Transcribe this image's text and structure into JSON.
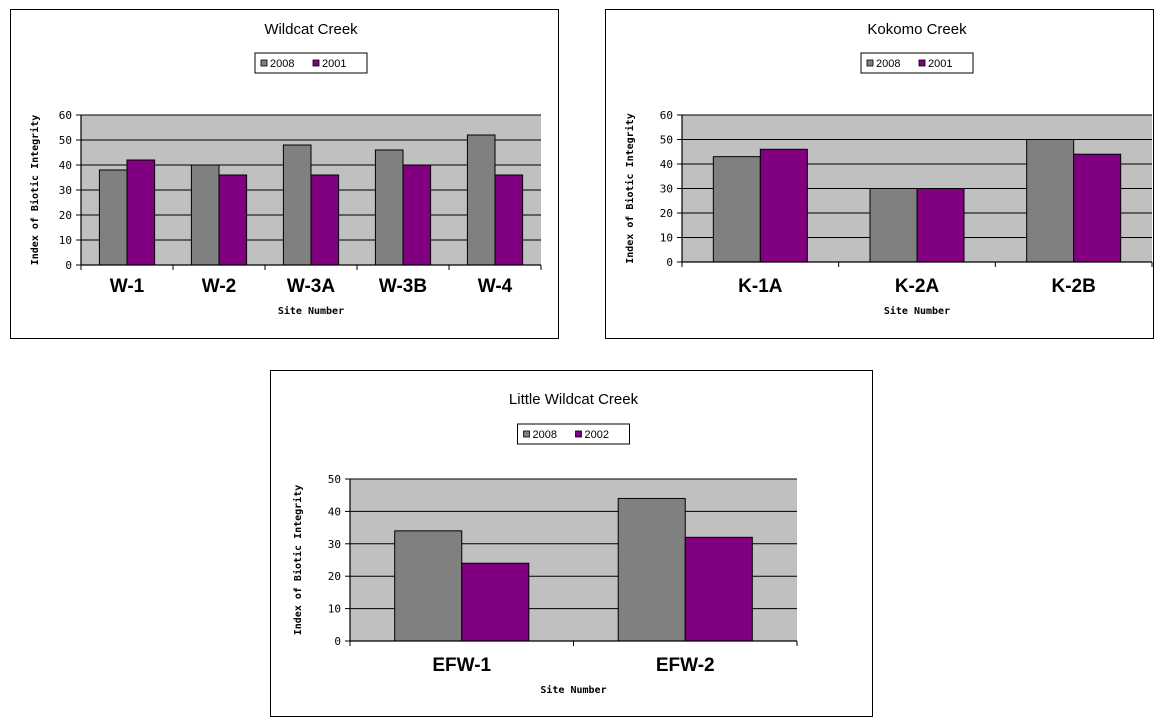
{
  "chart_data": [
    {
      "type": "bar",
      "title": "Wildcat Creek",
      "xlabel": "Site Number",
      "ylabel": "Index of Biotic Integrity",
      "ylim": [
        0,
        60
      ],
      "yticks": [
        0,
        10,
        20,
        30,
        40,
        50,
        60
      ],
      "categories": [
        "W-1",
        "W-2",
        "W-3A",
        "W-3B",
        "W-4"
      ],
      "series": [
        {
          "name": "2008",
          "color": "#808080",
          "values": [
            38,
            40,
            48,
            46,
            52
          ]
        },
        {
          "name": "2001",
          "color": "#800080",
          "values": [
            42,
            36,
            36,
            40,
            36
          ]
        }
      ],
      "grid": true,
      "legend": "top-center"
    },
    {
      "type": "bar",
      "title": "Kokomo Creek",
      "xlabel": "Site Number",
      "ylabel": "Index of Biotic Integrity",
      "ylim": [
        0,
        60
      ],
      "yticks": [
        0,
        10,
        20,
        30,
        40,
        50,
        60
      ],
      "categories": [
        "K-1A",
        "K-2A",
        "K-2B"
      ],
      "series": [
        {
          "name": "2008",
          "color": "#808080",
          "values": [
            43,
            30,
            50
          ]
        },
        {
          "name": "2001",
          "color": "#800080",
          "values": [
            46,
            30,
            44
          ]
        }
      ],
      "grid": true,
      "legend": "top-center"
    },
    {
      "type": "bar",
      "title": "Little Wildcat Creek",
      "xlabel": "Site Number",
      "ylabel": "Index of Biotic Integrity",
      "ylim": [
        0,
        50
      ],
      "yticks": [
        0,
        10,
        20,
        30,
        40,
        50
      ],
      "categories": [
        "EFW-1",
        "EFW-2"
      ],
      "series": [
        {
          "name": "2008",
          "color": "#808080",
          "values": [
            34,
            44
          ]
        },
        {
          "name": "2002",
          "color": "#800080",
          "values": [
            24,
            32
          ]
        }
      ],
      "grid": true,
      "legend": "top-center"
    }
  ]
}
